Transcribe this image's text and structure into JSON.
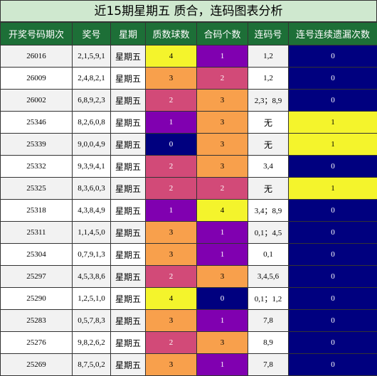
{
  "title": "近15期星期五 质合，连码图表分析",
  "headers": [
    "开奖号码期次",
    "奖号",
    "星期",
    "质数球数",
    "合码个数",
    "连码号",
    "连号连续遗漏次数"
  ],
  "colors": {
    "yellow": "#f4f42c",
    "purple": "#8000b0",
    "pink": "#d24a78",
    "orange": "#f8a04c",
    "navy": "#00007f"
  },
  "rows": [
    {
      "period": "26016",
      "nums": "2,1,5,9,1",
      "weekday": "星期五",
      "prime": "4",
      "prime_color": "yellow",
      "composite": "1",
      "composite_color": "purple",
      "consec": "1,2",
      "miss": "0",
      "miss_color": "navy"
    },
    {
      "period": "26009",
      "nums": "2,4,8,2,1",
      "weekday": "星期五",
      "prime": "3",
      "prime_color": "orange",
      "composite": "2",
      "composite_color": "pink",
      "consec": "1,2",
      "miss": "0",
      "miss_color": "navy"
    },
    {
      "period": "26002",
      "nums": "6,8,9,2,3",
      "weekday": "星期五",
      "prime": "2",
      "prime_color": "pink",
      "composite": "3",
      "composite_color": "orange",
      "consec": "2,3；8,9",
      "miss": "0",
      "miss_color": "navy"
    },
    {
      "period": "25346",
      "nums": "8,2,6,0,8",
      "weekday": "星期五",
      "prime": "1",
      "prime_color": "purple",
      "composite": "3",
      "composite_color": "orange",
      "consec": "无",
      "miss": "1",
      "miss_color": "yellow"
    },
    {
      "period": "25339",
      "nums": "9,0,0,4,9",
      "weekday": "星期五",
      "prime": "0",
      "prime_color": "navy",
      "composite": "3",
      "composite_color": "orange",
      "consec": "无",
      "miss": "1",
      "miss_color": "yellow"
    },
    {
      "period": "25332",
      "nums": "9,3,9,4,1",
      "weekday": "星期五",
      "prime": "2",
      "prime_color": "pink",
      "composite": "3",
      "composite_color": "orange",
      "consec": "3,4",
      "miss": "0",
      "miss_color": "navy"
    },
    {
      "period": "25325",
      "nums": "8,3,6,0,3",
      "weekday": "星期五",
      "prime": "2",
      "prime_color": "pink",
      "composite": "2",
      "composite_color": "pink",
      "consec": "无",
      "miss": "1",
      "miss_color": "yellow"
    },
    {
      "period": "25318",
      "nums": "4,3,8,4,9",
      "weekday": "星期五",
      "prime": "1",
      "prime_color": "purple",
      "composite": "4",
      "composite_color": "yellow",
      "consec": "3,4；8,9",
      "miss": "0",
      "miss_color": "navy"
    },
    {
      "period": "25311",
      "nums": "1,1,4,5,0",
      "weekday": "星期五",
      "prime": "3",
      "prime_color": "orange",
      "composite": "1",
      "composite_color": "purple",
      "consec": "0,1；4,5",
      "miss": "0",
      "miss_color": "navy"
    },
    {
      "period": "25304",
      "nums": "0,7,9,1,3",
      "weekday": "星期五",
      "prime": "3",
      "prime_color": "orange",
      "composite": "1",
      "composite_color": "purple",
      "consec": "0,1",
      "miss": "0",
      "miss_color": "navy"
    },
    {
      "period": "25297",
      "nums": "4,5,3,8,6",
      "weekday": "星期五",
      "prime": "2",
      "prime_color": "pink",
      "composite": "3",
      "composite_color": "orange",
      "consec": "3,4,5,6",
      "miss": "0",
      "miss_color": "navy"
    },
    {
      "period": "25290",
      "nums": "1,2,5,1,0",
      "weekday": "星期五",
      "prime": "4",
      "prime_color": "yellow",
      "composite": "0",
      "composite_color": "navy",
      "consec": "0,1；1,2",
      "miss": "0",
      "miss_color": "navy"
    },
    {
      "period": "25283",
      "nums": "0,5,7,8,3",
      "weekday": "星期五",
      "prime": "3",
      "prime_color": "orange",
      "composite": "1",
      "composite_color": "purple",
      "consec": "7,8",
      "miss": "0",
      "miss_color": "navy"
    },
    {
      "period": "25276",
      "nums": "9,8,2,6,2",
      "weekday": "星期五",
      "prime": "2",
      "prime_color": "pink",
      "composite": "3",
      "composite_color": "orange",
      "consec": "8,9",
      "miss": "0",
      "miss_color": "navy"
    },
    {
      "period": "25269",
      "nums": "8,7,5,0,2",
      "weekday": "星期五",
      "prime": "3",
      "prime_color": "orange",
      "composite": "1",
      "composite_color": "purple",
      "consec": "7,8",
      "miss": "0",
      "miss_color": "navy"
    }
  ]
}
